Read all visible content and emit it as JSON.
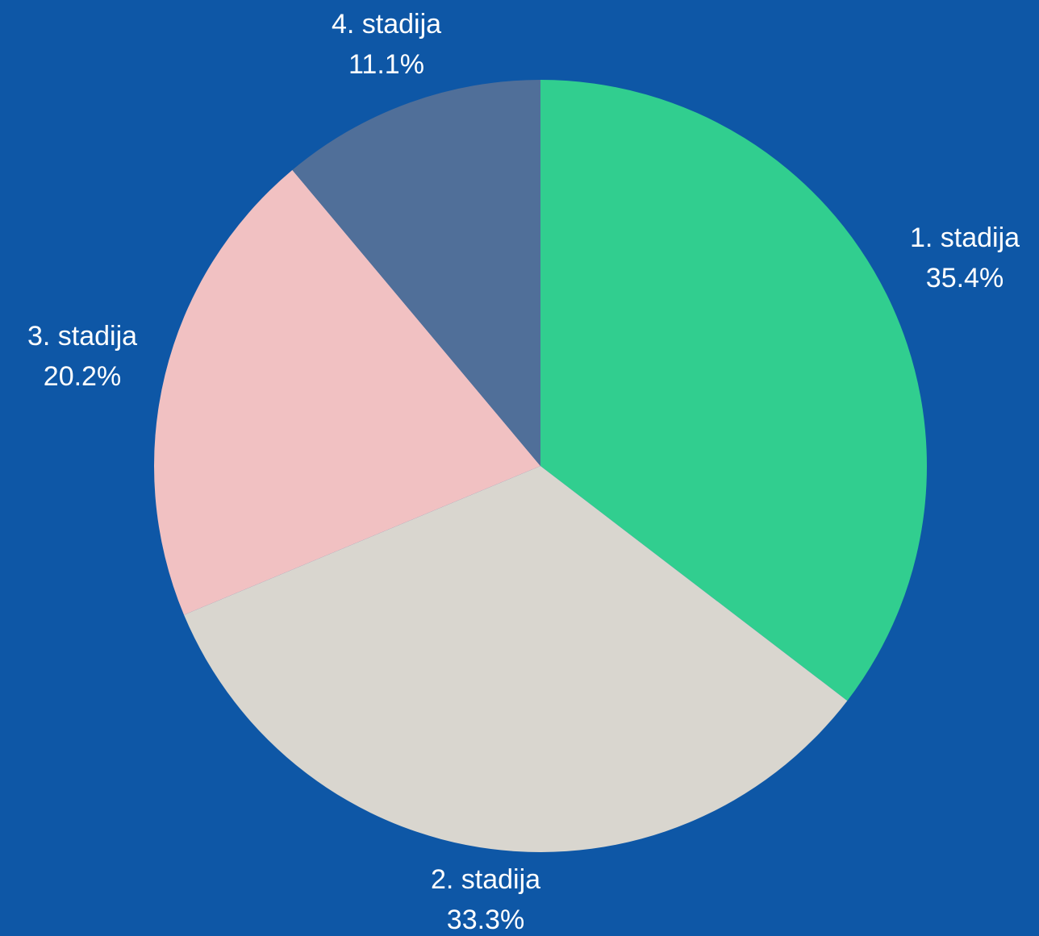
{
  "chart_data": {
    "type": "pie",
    "title": "",
    "start_angle_deg": 0,
    "direction": "clockwise",
    "background_color": "#0e57a6",
    "label_color": "#ffffff",
    "slices": [
      {
        "label": "1. stadija",
        "value": 35.4,
        "value_label": "35.4%",
        "color": "#31ce8f"
      },
      {
        "label": "2. stadija",
        "value": 33.3,
        "value_label": "33.3%",
        "color": "#d9d6cf"
      },
      {
        "label": "3. stadija",
        "value": 20.2,
        "value_label": "20.2%",
        "color": "#f1c1c2"
      },
      {
        "label": "4. stadija",
        "value": 11.1,
        "value_label": "11.1%",
        "color": "#506f99"
      }
    ]
  }
}
